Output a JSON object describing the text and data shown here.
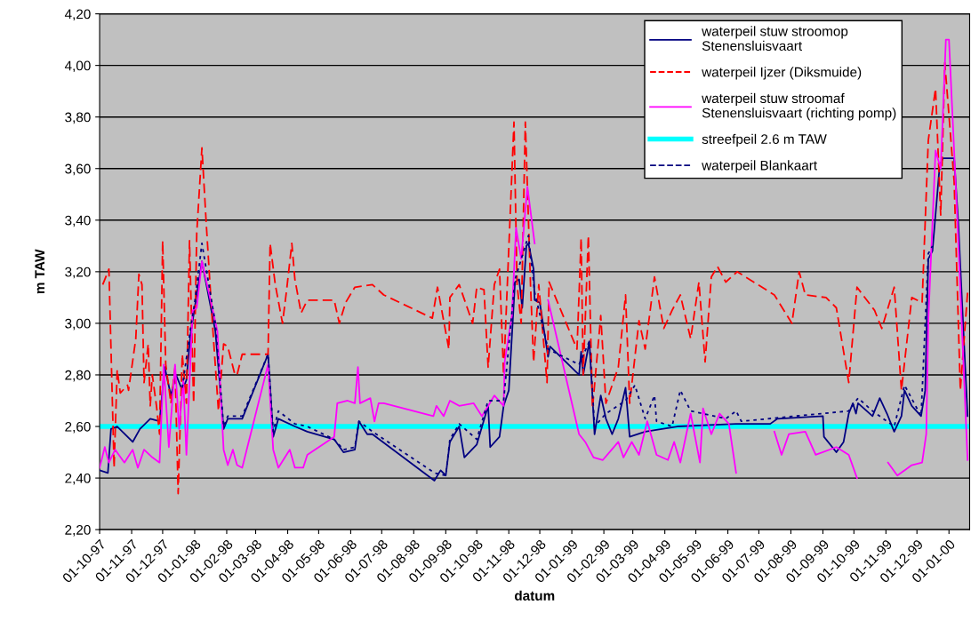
{
  "chart_data": {
    "type": "line",
    "xlabel": "datum",
    "ylabel": "m TAW",
    "xlim": [
      "1997-10-01",
      "2000-01-21"
    ],
    "ylim": [
      2.2,
      4.2
    ],
    "yticks": [
      {
        "value": 2.2,
        "label": "2,20"
      },
      {
        "value": 2.4,
        "label": "2,40"
      },
      {
        "value": 2.6,
        "label": "2,60"
      },
      {
        "value": 2.8,
        "label": "2,80"
      },
      {
        "value": 3.0,
        "label": "3,00"
      },
      {
        "value": 3.2,
        "label": "3,20"
      },
      {
        "value": 3.4,
        "label": "3,40"
      },
      {
        "value": 3.6,
        "label": "3,60"
      },
      {
        "value": 3.8,
        "label": "3,80"
      },
      {
        "value": 4.0,
        "label": "4,00"
      },
      {
        "value": 4.2,
        "label": "4,20"
      }
    ],
    "xticks": [
      {
        "value": "1997-10-01",
        "label": "01-10-97"
      },
      {
        "value": "1997-11-01",
        "label": "01-11-97"
      },
      {
        "value": "1997-12-01",
        "label": "01-12-97"
      },
      {
        "value": "1998-01-01",
        "label": "01-01-98"
      },
      {
        "value": "1998-02-01",
        "label": "01-02-98"
      },
      {
        "value": "1998-03-01",
        "label": "01-03-98"
      },
      {
        "value": "1998-04-01",
        "label": "01-04-98"
      },
      {
        "value": "1998-05-01",
        "label": "01-05-98"
      },
      {
        "value": "1998-06-01",
        "label": "01-06-98"
      },
      {
        "value": "1998-07-01",
        "label": "01-07-98"
      },
      {
        "value": "1998-08-01",
        "label": "01-08-98"
      },
      {
        "value": "1998-09-01",
        "label": "01-09-98"
      },
      {
        "value": "1998-10-01",
        "label": "01-10-98"
      },
      {
        "value": "1998-11-01",
        "label": "01-11-98"
      },
      {
        "value": "1998-12-01",
        "label": "01-12-98"
      },
      {
        "value": "1999-01-01",
        "label": "01-01-99"
      },
      {
        "value": "1999-02-01",
        "label": "01-02-99"
      },
      {
        "value": "1999-03-01",
        "label": "01-03-99"
      },
      {
        "value": "1999-04-01",
        "label": "01-04-99"
      },
      {
        "value": "1999-05-01",
        "label": "01-05-99"
      },
      {
        "value": "1999-06-01",
        "label": "01-06-99"
      },
      {
        "value": "1999-07-01",
        "label": "01-07-99"
      },
      {
        "value": "1999-08-01",
        "label": "01-08-99"
      },
      {
        "value": "1999-09-01",
        "label": "01-09-99"
      },
      {
        "value": "1999-10-01",
        "label": "01-10-99"
      },
      {
        "value": "1999-11-01",
        "label": "01-11-99"
      },
      {
        "value": "1999-12-01",
        "label": "01-12-99"
      },
      {
        "value": "2000-01-01",
        "label": "01-01-00"
      }
    ],
    "grid": "y",
    "legend": "top right",
    "marker": "none",
    "ref_lines": [
      {
        "axis": "y",
        "value": 2.6,
        "label": "streefpeil 2.6 m TAW",
        "color": "#00ffff",
        "line_style": "solid"
      }
    ],
    "series": [
      {
        "name": "waterpeil stuw stroomop\nStenensluisvaart",
        "color": "#000080",
        "line_style": "solid",
        "x": [
          "1997-10-01",
          "1997-10-09",
          "1997-10-12",
          "1997-10-18",
          "1997-11-02",
          "1997-11-09",
          "1997-11-19",
          "1997-11-28",
          "1997-12-03",
          "1997-12-09",
          "1997-12-14",
          "1997-12-20",
          "1997-12-24",
          "1997-12-28",
          "1998-01-01",
          "1998-01-08",
          "1998-01-21",
          "1998-01-29",
          "1998-02-02",
          "1998-02-16",
          "1998-03-13",
          "1998-03-18",
          "1998-03-23",
          "1998-04-08",
          "1998-04-20",
          "1998-05-16",
          "1998-05-25",
          "1998-06-05",
          "1998-06-09",
          "1998-06-17",
          "1998-06-22",
          "1998-08-21",
          "1998-08-27",
          "1998-09-01",
          "1998-09-05",
          "1998-09-14",
          "1998-09-19",
          "1998-10-01",
          "1998-10-12",
          "1998-10-14",
          "1998-10-23",
          "1998-10-27",
          "1998-11-01",
          "1998-11-07",
          "1998-11-11",
          "1998-11-14",
          "1998-11-18",
          "1998-11-20",
          "1998-11-25",
          "1998-11-26",
          "1998-12-01",
          "1998-12-09",
          "1998-12-11",
          "1999-01-08",
          "1999-01-10",
          "1999-01-12",
          "1999-01-18",
          "1999-01-23",
          "1999-01-29",
          "1999-02-03",
          "1999-02-09",
          "1999-02-15",
          "1999-02-22",
          "1999-02-26",
          "1999-03-13",
          "1999-04-13",
          "1999-06-09",
          "1999-07-12",
          "1999-07-19",
          "1999-09-01",
          "1999-09-02",
          "1999-09-14",
          "1999-09-21",
          "1999-09-26",
          "1999-09-30",
          "1999-10-03",
          "1999-10-05",
          "1999-10-19",
          "1999-10-26",
          "1999-11-02",
          "1999-11-09",
          "1999-11-16",
          "1999-11-19",
          "1999-11-26",
          "1999-12-05",
          "1999-12-09",
          "1999-12-12",
          "1999-12-16",
          "1999-12-23",
          "1999-12-26",
          "2000-01-06",
          "2000-01-10",
          "2000-01-19"
        ],
        "values": [
          2.43,
          2.42,
          2.59,
          2.6,
          2.54,
          2.59,
          2.63,
          2.62,
          2.83,
          2.72,
          2.8,
          2.74,
          2.78,
          2.96,
          3.06,
          3.24,
          2.97,
          2.59,
          2.63,
          2.63,
          2.88,
          2.56,
          2.63,
          2.6,
          2.58,
          2.55,
          2.5,
          2.51,
          2.62,
          2.57,
          2.57,
          2.39,
          2.43,
          2.41,
          2.54,
          2.6,
          2.48,
          2.53,
          2.68,
          2.52,
          2.56,
          2.68,
          2.74,
          3.16,
          3.17,
          3.06,
          3.3,
          3.31,
          3.21,
          3.09,
          3.08,
          2.87,
          2.91,
          2.8,
          2.89,
          2.8,
          2.93,
          2.57,
          2.72,
          2.63,
          2.57,
          2.63,
          2.75,
          2.56,
          2.58,
          2.6,
          2.61,
          2.61,
          2.63,
          2.64,
          2.56,
          2.5,
          2.54,
          2.65,
          2.69,
          2.65,
          2.69,
          2.64,
          2.71,
          2.65,
          2.58,
          2.64,
          2.74,
          2.68,
          2.64,
          2.74,
          3.25,
          3.28,
          3.61,
          3.64,
          3.64,
          3.39,
          2.64
        ]
      },
      {
        "name": "waterpeil Ijzer (Diksmuide)",
        "color": "#ff0000",
        "line_style": "dashed",
        "x": [
          "1997-10-04",
          "1997-10-10",
          "1997-10-15",
          "1997-10-18",
          "1997-10-21",
          "1997-10-28",
          "1997-10-29",
          "1997-11-05",
          "1997-11-08",
          "1997-11-11",
          "1997-11-13",
          "1997-11-17",
          "1997-11-19",
          "1997-11-21",
          "1997-11-25",
          "1997-11-28",
          "1997-12-01",
          "1997-12-04",
          "1997-12-09",
          "1997-12-13",
          "1997-12-16",
          "1997-12-20",
          "1997-12-24",
          "1997-12-27",
          "1997-12-31",
          "1998-01-03",
          "1998-01-08",
          "1998-01-12",
          "1998-01-18",
          "1998-01-24",
          "1998-01-29",
          "1998-02-02",
          "1998-02-09",
          "1998-02-11",
          "1998-02-16",
          "1998-03-13",
          "1998-03-15",
          "1998-03-20",
          "1998-03-27",
          "1998-03-31",
          "1998-04-05",
          "1998-04-08",
          "1998-04-14",
          "1998-04-20",
          "1998-05-16",
          "1998-05-21",
          "1998-05-27",
          "1998-06-05",
          "1998-06-22",
          "1998-07-03",
          "1998-08-19",
          "1998-08-24",
          "1998-09-04",
          "1998-09-05",
          "1998-09-14",
          "1998-09-27",
          "1998-10-01",
          "1998-10-08",
          "1998-10-12",
          "1998-10-18",
          "1998-10-23",
          "1998-10-27",
          "1998-11-06",
          "1998-11-09",
          "1998-11-13",
          "1998-11-17",
          "1998-11-22",
          "1998-11-25",
          "1998-11-30",
          "1998-12-08",
          "1998-12-10",
          "1999-01-06",
          "1999-01-10",
          "1999-01-12",
          "1999-01-17",
          "1999-01-21",
          "1999-01-29",
          "1999-02-03",
          "1999-02-15",
          "1999-02-22",
          "1999-02-26",
          "1999-03-07",
          "1999-03-13",
          "1999-03-22",
          "1999-03-31",
          "1999-04-08",
          "1999-04-16",
          "1999-04-26",
          "1999-05-04",
          "1999-05-10",
          "1999-05-16",
          "1999-05-22",
          "1999-05-30",
          "1999-06-10",
          "1999-07-16",
          "1999-08-02",
          "1999-08-09",
          "1999-08-15",
          "1999-09-04",
          "1999-09-14",
          "1999-09-26",
          "1999-10-04",
          "1999-10-21",
          "1999-10-28",
          "1999-11-09",
          "1999-11-16",
          "1999-11-26",
          "1999-12-06",
          "1999-12-12",
          "1999-12-19",
          "1999-12-24",
          "1999-12-28",
          "2000-01-06",
          "2000-01-12",
          "2000-01-19"
        ],
        "values": [
          3.15,
          3.21,
          2.44,
          2.82,
          2.73,
          2.76,
          2.74,
          2.94,
          3.19,
          3.15,
          2.77,
          2.92,
          2.68,
          2.8,
          2.68,
          2.57,
          3.32,
          2.84,
          2.69,
          2.83,
          2.34,
          2.88,
          2.69,
          3.32,
          2.69,
          3.35,
          3.68,
          3.4,
          3.01,
          2.66,
          2.92,
          2.91,
          2.8,
          2.8,
          2.88,
          2.88,
          3.31,
          3.15,
          3.0,
          3.13,
          3.31,
          3.17,
          3.04,
          3.09,
          3.09,
          3.0,
          3.08,
          3.14,
          3.15,
          3.11,
          3.02,
          3.14,
          2.9,
          3.1,
          3.15,
          3.0,
          3.14,
          3.13,
          2.83,
          3.15,
          3.21,
          2.8,
          3.78,
          3.15,
          3.0,
          3.78,
          3.15,
          2.85,
          3.15,
          2.77,
          3.16,
          2.9,
          3.33,
          2.8,
          3.34,
          2.67,
          3.03,
          2.69,
          2.83,
          3.11,
          2.69,
          3.01,
          2.9,
          3.18,
          2.98,
          3.05,
          3.11,
          2.94,
          3.16,
          2.85,
          3.18,
          3.22,
          3.16,
          3.2,
          3.11,
          3.0,
          3.2,
          3.11,
          3.1,
          3.06,
          2.77,
          3.14,
          3.05,
          2.98,
          3.14,
          2.74,
          3.1,
          3.08,
          3.71,
          3.91,
          3.42,
          4.01,
          3.55,
          2.74,
          3.12
        ]
      },
      {
        "name": "waterpeil stuw stroomaf\nStenensluisvaart (richting pomp)",
        "color": "#ff00ff",
        "line_style": "solid",
        "x": [
          "1997-10-01",
          "1997-10-06",
          "1997-10-10",
          "1997-10-16",
          "1997-10-25",
          "1997-11-02",
          "1997-11-07",
          "1997-11-13",
          "1997-11-21",
          "1997-11-28",
          "1997-12-02",
          "1997-12-07",
          "1997-12-13",
          "1997-12-17",
          "1997-12-21",
          "1997-12-24",
          "1997-12-30",
          "1998-01-03",
          "1998-01-08",
          "1998-01-23",
          "1998-01-29",
          "1998-02-02",
          "1998-02-07",
          "1998-02-11",
          "1998-02-16",
          "1998-03-13",
          "1998-03-18",
          "1998-03-23",
          "1998-04-03",
          "1998-04-08",
          "1998-04-16",
          "1998-04-20",
          "1998-05-16",
          "1998-05-19",
          "1998-05-29",
          "1998-06-05",
          "1998-06-08",
          "1998-06-10",
          "1998-06-20",
          "1998-06-24",
          "1998-06-28",
          "1998-07-03",
          "1998-08-20",
          "1998-08-23",
          "1998-08-30",
          "1998-09-05",
          "1998-09-14",
          "1998-09-28",
          "1998-10-06",
          "1998-10-18",
          "1998-10-27",
          "1998-10-28",
          "1998-11-04",
          "1998-11-08",
          "1998-11-13",
          "1998-11-19",
          "1998-11-26",
          "1998-12-04",
          "1998-12-09",
          "1999-01-08",
          "1999-01-14",
          "1999-01-22",
          "1999-01-31",
          "1999-02-15",
          "1999-02-20",
          "1999-02-28",
          "1999-03-07",
          "1999-03-15",
          "1999-03-24",
          "1999-04-04",
          "1999-04-10",
          "1999-04-16",
          "1999-04-26",
          "1999-05-05",
          "1999-05-08",
          "1999-05-16",
          "1999-05-24",
          "1999-06-02",
          "1999-06-09",
          "1999-06-25",
          "1999-07-16",
          "1999-07-23",
          "1999-07-30",
          "1999-08-15",
          "1999-08-25",
          "1999-09-14",
          "1999-09-26",
          "1999-10-04",
          "1999-10-20",
          "1999-11-03",
          "1999-11-12",
          "1999-11-26",
          "1999-12-06",
          "1999-12-10",
          "1999-12-12",
          "1999-12-19",
          "1999-12-24",
          "1999-12-29",
          "2000-01-01",
          "2000-01-09",
          "2000-01-19"
        ],
        "values": [
          2.44,
          2.52,
          2.46,
          2.51,
          2.46,
          2.51,
          2.44,
          2.51,
          2.48,
          2.46,
          2.84,
          2.52,
          2.84,
          2.59,
          2.78,
          2.49,
          3.05,
          3.06,
          3.24,
          2.97,
          2.51,
          2.45,
          2.51,
          2.45,
          2.44,
          2.84,
          2.51,
          2.44,
          2.51,
          2.44,
          2.44,
          2.49,
          2.56,
          2.69,
          2.7,
          2.69,
          2.83,
          2.69,
          2.71,
          2.62,
          2.69,
          2.69,
          2.64,
          2.68,
          2.64,
          2.7,
          2.68,
          2.69,
          2.64,
          2.72,
          2.68,
          2.85,
          3.03,
          3.37,
          3.25,
          3.53,
          3.31,
          null,
          3.09,
          2.57,
          2.54,
          2.48,
          2.47,
          2.54,
          2.48,
          2.54,
          2.49,
          2.62,
          2.49,
          2.47,
          2.54,
          2.46,
          2.65,
          2.46,
          2.67,
          2.57,
          2.65,
          2.61,
          2.42,
          null,
          2.58,
          2.49,
          2.57,
          2.58,
          2.49,
          2.52,
          2.49,
          2.4,
          null,
          2.46,
          2.41,
          2.45,
          2.46,
          2.57,
          3.01,
          3.67,
          3.6,
          4.1,
          4.1,
          3.41,
          2.47
        ]
      },
      {
        "name": "waterpeil Blankaart",
        "color": "#000080",
        "line_style": "dotted",
        "x": [
          "1997-12-20",
          "1997-12-28",
          "1998-01-01",
          "1998-01-08",
          "1998-01-21",
          "1998-01-29",
          "1998-02-02",
          "1998-02-16",
          "1998-03-13",
          "1998-03-18",
          "1998-03-23",
          "1998-04-08",
          "1998-04-20",
          "1998-05-16",
          "1998-05-25",
          "1998-06-05",
          "1998-06-09",
          "1998-06-22",
          "1998-08-21",
          "1998-09-01",
          "1998-09-05",
          "1998-09-14",
          "1998-10-01",
          "1998-10-12",
          "1998-10-27",
          "1998-11-07",
          "1998-11-20",
          "1998-11-26",
          "1998-12-09",
          "1999-01-08",
          "1999-01-18",
          "1999-01-23",
          "1999-02-03",
          "1999-02-22",
          "1999-03-03",
          "1999-03-13",
          "1999-03-22",
          "1999-03-24",
          "1999-04-08",
          "1999-04-16",
          "1999-04-26",
          "1999-05-30",
          "1999-06-09",
          "1999-06-14",
          "1999-09-26",
          "1999-10-05",
          "1999-10-19",
          "1999-11-09",
          "1999-11-19",
          "1999-12-05",
          "1999-12-12",
          "1999-12-16"
        ],
        "values": [
          2.75,
          2.98,
          3.08,
          3.31,
          3.0,
          2.6,
          2.64,
          2.64,
          2.88,
          2.58,
          2.66,
          2.61,
          2.6,
          2.55,
          2.51,
          2.52,
          2.62,
          2.58,
          2.42,
          2.41,
          2.55,
          2.61,
          2.55,
          2.7,
          2.7,
          3.17,
          3.34,
          3.12,
          2.9,
          2.84,
          2.93,
          2.6,
          2.65,
          2.7,
          2.76,
          2.63,
          2.72,
          2.62,
          2.6,
          2.74,
          2.66,
          2.63,
          2.66,
          2.62,
          2.66,
          2.71,
          2.66,
          2.6,
          2.76,
          2.64,
          3.27,
          3.3
        ]
      }
    ]
  }
}
